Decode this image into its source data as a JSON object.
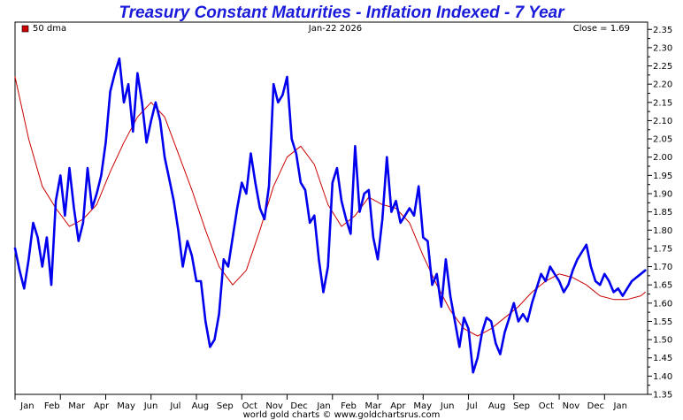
{
  "chart_data": {
    "type": "line",
    "title": "Treasury Constant Maturities - Inflation Indexed - 7 Year",
    "header": {
      "date": "Jan-22  2026",
      "close": "Close = 1.69"
    },
    "legend": {
      "label": "50 dma",
      "color": "#cc0000",
      "placement": "top-left"
    },
    "footer": "world gold charts © www.goldchartsrus.com",
    "ylim": [
      1.35,
      2.37
    ],
    "yticks": [
      "1.35",
      "1.40",
      "1.45",
      "1.50",
      "1.55",
      "1.60",
      "1.65",
      "1.70",
      "1.75",
      "1.80",
      "1.85",
      "1.90",
      "1.95",
      "2.00",
      "2.05",
      "2.10",
      "2.15",
      "2.20",
      "2.25",
      "2.30",
      "2.35"
    ],
    "xlim": [
      0,
      13.95
    ],
    "xticks": [
      "Jan",
      "Feb",
      "Mar",
      "Apr",
      "May",
      "Jun",
      "Jul",
      "Aug",
      "Sep",
      "Oct",
      "Nov",
      "Dec",
      "Jan",
      "Feb",
      "Mar",
      "Apr",
      "May",
      "Jun",
      "Jul",
      "Aug",
      "Sep",
      "Oct",
      "Nov",
      "Dec",
      "Jan"
    ],
    "grid": false,
    "series": [
      {
        "name": "",
        "color": "#0000ee",
        "x": [
          0.0,
          0.1,
          0.2,
          0.3,
          0.4,
          0.5,
          0.6,
          0.7,
          0.8,
          0.9,
          1.0,
          1.1,
          1.2,
          1.3,
          1.4,
          1.5,
          1.6,
          1.7,
          1.8,
          1.9,
          2.0,
          2.1,
          2.2,
          2.3,
          2.4,
          2.5,
          2.6,
          2.7,
          2.8,
          2.9,
          3.0,
          3.1,
          3.2,
          3.3,
          3.4,
          3.5,
          3.6,
          3.7,
          3.8,
          3.9,
          4.0,
          4.1,
          4.2,
          4.3,
          4.4,
          4.5,
          4.6,
          4.7,
          4.8,
          4.9,
          5.0,
          5.1,
          5.2,
          5.3,
          5.4,
          5.5,
          5.6,
          5.7,
          5.8,
          5.9,
          6.0,
          6.1,
          6.2,
          6.3,
          6.4,
          6.5,
          6.6,
          6.7,
          6.8,
          6.9,
          7.0,
          7.1,
          7.2,
          7.3,
          7.4,
          7.5,
          7.6,
          7.7,
          7.8,
          7.9,
          8.0,
          8.1,
          8.2,
          8.3,
          8.4,
          8.5,
          8.6,
          8.7,
          8.8,
          8.9,
          9.0,
          9.1,
          9.2,
          9.3,
          9.4,
          9.5,
          9.6,
          9.7,
          9.8,
          9.9,
          10.0,
          10.1,
          10.2,
          10.3,
          10.4,
          10.5,
          10.6,
          10.7,
          10.8,
          10.9,
          11.0,
          11.1,
          11.2,
          11.3,
          11.4,
          11.5,
          11.6,
          11.7,
          11.8,
          11.9,
          12.0,
          12.1,
          12.2,
          12.3,
          12.4,
          12.5,
          12.6,
          12.7,
          12.8,
          12.9,
          13.0,
          13.1,
          13.2,
          13.3,
          13.4,
          13.5,
          13.6,
          13.7,
          13.8,
          13.9
        ],
        "values": [
          1.75,
          1.69,
          1.64,
          1.72,
          1.82,
          1.78,
          1.7,
          1.78,
          1.65,
          1.88,
          1.95,
          1.84,
          1.97,
          1.86,
          1.77,
          1.82,
          1.97,
          1.86,
          1.9,
          1.95,
          2.04,
          2.18,
          2.23,
          2.27,
          2.15,
          2.2,
          2.07,
          2.23,
          2.15,
          2.04,
          2.1,
          2.15,
          2.1,
          2.0,
          1.94,
          1.88,
          1.8,
          1.7,
          1.77,
          1.73,
          1.66,
          1.66,
          1.55,
          1.48,
          1.5,
          1.57,
          1.72,
          1.7,
          1.78,
          1.86,
          1.93,
          1.9,
          2.01,
          1.93,
          1.86,
          1.83,
          1.92,
          2.2,
          2.15,
          2.17,
          2.22,
          2.05,
          2.01,
          1.93,
          1.91,
          1.82,
          1.84,
          1.72,
          1.63,
          1.7,
          1.93,
          1.97,
          1.88,
          1.83,
          1.79,
          2.03,
          1.85,
          1.9,
          1.91,
          1.78,
          1.72,
          1.83,
          2.0,
          1.85,
          1.88,
          1.82,
          1.84,
          1.86,
          1.84,
          1.92,
          1.78,
          1.77,
          1.65,
          1.68,
          1.59,
          1.72,
          1.62,
          1.55,
          1.48,
          1.56,
          1.53,
          1.41,
          1.45,
          1.52,
          1.56,
          1.55,
          1.49,
          1.46,
          1.52,
          1.56,
          1.6,
          1.55,
          1.57,
          1.55,
          1.6,
          1.64,
          1.68,
          1.66,
          1.7,
          1.68,
          1.66,
          1.63,
          1.65,
          1.69,
          1.72,
          1.74,
          1.76,
          1.7,
          1.66,
          1.65,
          1.68,
          1.66,
          1.63,
          1.64,
          1.62,
          1.64,
          1.66,
          1.67,
          1.68,
          1.69
        ]
      },
      {
        "name": "50 dma",
        "color": "#cc0000",
        "x": [
          0.0,
          0.3,
          0.6,
          0.9,
          1.2,
          1.5,
          1.8,
          2.1,
          2.4,
          2.7,
          3.0,
          3.3,
          3.6,
          3.9,
          4.2,
          4.5,
          4.8,
          5.1,
          5.4,
          5.7,
          6.0,
          6.3,
          6.6,
          6.9,
          7.2,
          7.5,
          7.8,
          8.1,
          8.4,
          8.7,
          9.0,
          9.3,
          9.6,
          9.9,
          10.2,
          10.5,
          10.8,
          11.1,
          11.4,
          11.7,
          12.0,
          12.3,
          12.6,
          12.9,
          13.2,
          13.5,
          13.8,
          13.9
        ],
        "values": [
          2.22,
          2.05,
          1.92,
          1.86,
          1.81,
          1.83,
          1.87,
          1.96,
          2.04,
          2.11,
          2.15,
          2.11,
          2.01,
          1.91,
          1.8,
          1.7,
          1.65,
          1.69,
          1.8,
          1.92,
          2.0,
          2.03,
          1.98,
          1.87,
          1.81,
          1.84,
          1.89,
          1.87,
          1.86,
          1.82,
          1.73,
          1.65,
          1.58,
          1.53,
          1.51,
          1.53,
          1.56,
          1.59,
          1.63,
          1.66,
          1.68,
          1.67,
          1.65,
          1.62,
          1.61,
          1.61,
          1.62,
          1.63
        ]
      }
    ]
  }
}
